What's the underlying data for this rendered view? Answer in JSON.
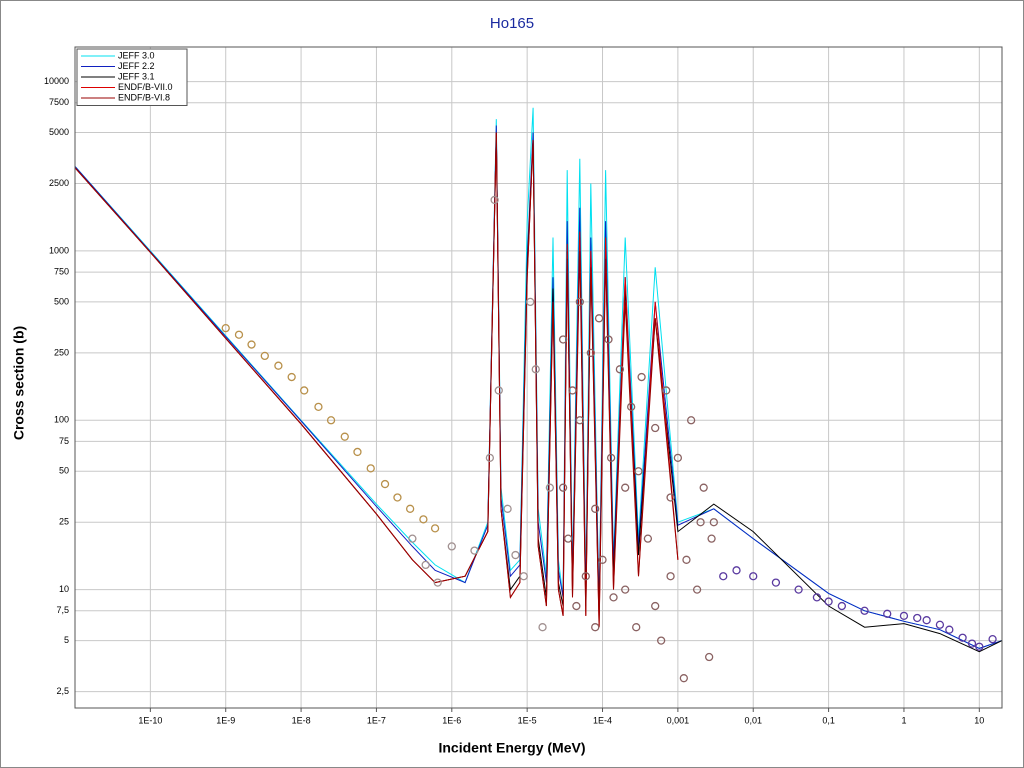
{
  "chart_data": {
    "type": "line",
    "title": "Ho165",
    "x_label": "Incident Energy (MeV)",
    "y_label": "Cross section (b)",
    "log_x": true,
    "log_y": true,
    "grid": true,
    "legend": "top-left",
    "xlim": [
      1e-11,
      20
    ],
    "ylim": [
      2,
      16000
    ],
    "xticks": [
      {
        "value": 1e-10,
        "label": "1E-10"
      },
      {
        "value": 1e-09,
        "label": "1E-9"
      },
      {
        "value": 1e-08,
        "label": "1E-8"
      },
      {
        "value": 1e-07,
        "label": "1E-7"
      },
      {
        "value": 1e-06,
        "label": "1E-6"
      },
      {
        "value": 1e-05,
        "label": "1E-5"
      },
      {
        "value": 0.0001,
        "label": "1E-4"
      },
      {
        "value": 0.001,
        "label": "0,001"
      },
      {
        "value": 0.01,
        "label": "0,01"
      },
      {
        "value": 0.1,
        "label": "0,1"
      },
      1,
      10
    ],
    "yticks": [
      {
        "value": 2.5,
        "label": "2,5"
      },
      5,
      {
        "value": 7.5,
        "label": "7,5"
      },
      10,
      25,
      50,
      75,
      100,
      250,
      500,
      750,
      1000,
      2500,
      5000,
      7500,
      10000
    ],
    "x": [
      1e-11,
      1e-10,
      1e-09,
      1e-08,
      1e-07,
      3e-07,
      6e-07,
      1.5e-06,
      3e-06,
      3.9e-06,
      4.5e-06,
      6e-06,
      8e-06,
      1e-05,
      1.2e-05,
      1.4e-05,
      1.8e-05,
      2.2e-05,
      2.6e-05,
      3e-05,
      3.4e-05,
      4e-05,
      5e-05,
      6e-05,
      7e-05,
      9e-05,
      0.00011,
      0.00014,
      0.0002,
      0.0003,
      0.0005,
      0.001,
      0.003,
      0.01,
      0.1,
      0.3,
      1,
      3,
      10,
      20
    ],
    "series": [
      {
        "name": "JEFF 3.0",
        "color": "#00e0f0",
        "values": [
          3160,
          1000,
          316,
          100,
          32,
          19,
          14,
          11,
          25,
          6000,
          40,
          13,
          15,
          1500,
          7000,
          30,
          12,
          1200,
          15,
          9,
          3000,
          12,
          3500,
          10,
          2500,
          8,
          3000,
          15,
          1200,
          20,
          800,
          25,
          30,
          20,
          9.5,
          7.5,
          6.5,
          5.8,
          4.5,
          5
        ]
      },
      {
        "name": "JEFF 2.2",
        "color": "#1020c0",
        "values": [
          3150,
          990,
          312,
          99,
          31,
          18,
          13,
          11,
          24,
          5500,
          35,
          12,
          14,
          900,
          5000,
          25,
          11,
          700,
          13,
          9,
          1500,
          11,
          1800,
          9,
          1200,
          8,
          1500,
          14,
          700,
          18,
          500,
          24,
          30,
          20,
          9.5,
          7.5,
          6.5,
          5.8,
          4.5,
          5
        ]
      },
      {
        "name": "JEFF 3.1",
        "color": "#000000",
        "values": [
          3100,
          980,
          305,
          95,
          28,
          15,
          11,
          12,
          22,
          5000,
          30,
          10,
          12,
          800,
          4500,
          20,
          9,
          600,
          11,
          8,
          1000,
          10,
          1200,
          8,
          900,
          7,
          1000,
          12,
          600,
          16,
          400,
          22,
          32,
          22,
          8,
          6,
          6.3,
          5.5,
          4.3,
          5
        ]
      },
      {
        "name": "ENDF/B-VII.0",
        "color": "#dd0000",
        "values": [
          3100,
          980,
          305,
          95,
          28,
          15,
          11,
          12,
          22,
          5000,
          30,
          9,
          11,
          700,
          4500,
          18,
          8,
          500,
          10,
          7,
          1100,
          9,
          1300,
          7,
          1000,
          6,
          1200,
          10,
          700,
          12,
          500,
          15,
          null,
          null,
          null,
          null,
          null,
          null,
          null,
          null
        ]
      },
      {
        "name": "ENDF/B-VI.8",
        "color": "#990000",
        "values": [
          3100,
          980,
          305,
          95,
          28,
          15,
          11,
          12,
          22,
          5000,
          30,
          9,
          11,
          700,
          4500,
          18,
          8,
          500,
          10,
          7,
          900,
          9,
          1000,
          7,
          800,
          6,
          900,
          10,
          500,
          12,
          400,
          15,
          null,
          null,
          null,
          null,
          null,
          null,
          null,
          null
        ]
      }
    ],
    "points": [
      {
        "color": "#b8904a",
        "x": [
          1e-09,
          1.5e-09,
          2.2e-09,
          3.3e-09,
          5e-09,
          7.5e-09,
          1.1e-08,
          1.7e-08,
          2.5e-08,
          3.8e-08,
          5.6e-08,
          8.4e-08,
          1.3e-07,
          1.9e-07,
          2.8e-07,
          4.2e-07,
          6e-07
        ],
        "values": [
          350,
          320,
          280,
          240,
          210,
          180,
          150,
          120,
          100,
          80,
          65,
          52,
          42,
          35,
          30,
          26,
          23
        ]
      },
      {
        "color": "#a09090",
        "x": [
          3e-07,
          4.5e-07,
          6.5e-07,
          1e-06,
          2e-06,
          3.2e-06,
          3.7e-06,
          4.2e-06,
          5.5e-06,
          7e-06,
          9e-06,
          1.1e-05,
          1.3e-05,
          1.6e-05,
          2e-05
        ],
        "values": [
          20,
          14,
          11,
          18,
          17,
          60,
          2000,
          150,
          30,
          16,
          12,
          500,
          200,
          6,
          40
        ]
      },
      {
        "color": "#8a6262",
        "x": [
          3e-05,
          3.5e-05,
          4e-05,
          4.5e-05,
          5e-05,
          6e-05,
          7e-05,
          8e-05,
          9e-05,
          0.0001,
          0.00012,
          0.00014,
          0.00017,
          0.0002,
          0.00024,
          0.00028,
          0.00033,
          0.0004,
          0.0005,
          0.0006,
          0.0007,
          0.0008,
          0.001,
          0.0012,
          0.0015,
          0.0018,
          0.0022,
          0.0026,
          0.003,
          3e-05,
          5e-05,
          8e-05,
          0.00013,
          0.0002,
          0.0003,
          0.0005,
          0.0008,
          0.0013,
          0.002,
          0.0028
        ],
        "values": [
          300,
          20,
          150,
          8,
          500,
          12,
          250,
          6,
          400,
          15,
          300,
          9,
          200,
          40,
          120,
          6,
          180,
          20,
          90,
          5,
          150,
          12,
          60,
          3,
          100,
          10,
          40,
          4,
          25,
          40,
          100,
          30,
          60,
          10,
          50,
          8,
          35,
          15,
          25,
          20
        ]
      },
      {
        "color": "#5a3aa0",
        "x": [
          0.004,
          0.006,
          0.01,
          0.02,
          0.04,
          0.07,
          0.1,
          0.15,
          0.3,
          0.6,
          1,
          1.5,
          2,
          3,
          4,
          6,
          8,
          10,
          15
        ],
        "values": [
          12,
          13,
          12,
          11,
          10,
          9,
          8.5,
          8,
          7.5,
          7.2,
          7,
          6.8,
          6.6,
          6.2,
          5.8,
          5.2,
          4.8,
          4.6,
          5.1
        ]
      }
    ]
  }
}
